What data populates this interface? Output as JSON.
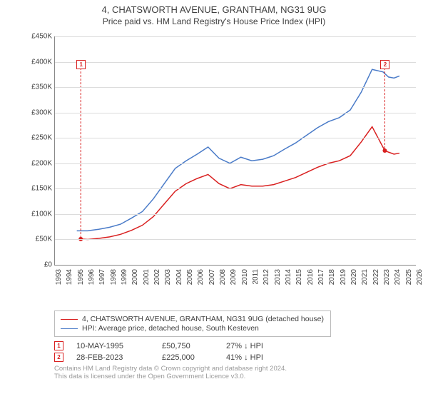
{
  "title": "4, CHATSWORTH AVENUE, GRANTHAM, NG31 9UG",
  "subtitle": "Price paid vs. HM Land Registry's House Price Index (HPI)",
  "chart": {
    "type": "line",
    "background_color": "#ffffff",
    "grid_color": "#dcdcdc",
    "axis_color": "#888888",
    "title_fontsize": 13,
    "label_fontsize": 10,
    "xlim": [
      1993,
      2026
    ],
    "ylim": [
      0,
      450000
    ],
    "ytick_step": 50000,
    "yticks": [
      "£0",
      "£50K",
      "£100K",
      "£150K",
      "£200K",
      "£250K",
      "£300K",
      "£350K",
      "£400K",
      "£450K"
    ],
    "xticks": [
      1993,
      1994,
      1995,
      1996,
      1997,
      1998,
      1999,
      2000,
      2001,
      2002,
      2003,
      2004,
      2005,
      2006,
      2007,
      2008,
      2009,
      2010,
      2011,
      2012,
      2013,
      2014,
      2015,
      2016,
      2017,
      2018,
      2019,
      2020,
      2021,
      2022,
      2023,
      2024,
      2025,
      2026
    ],
    "series": [
      {
        "name": "property",
        "label": "4, CHATSWORTH AVENUE, GRANTHAM, NG31 9UG (detached house)",
        "color": "#d92020",
        "line_width": 1.5,
        "data": [
          [
            1995.36,
            50750
          ],
          [
            1996,
            50000
          ],
          [
            1997,
            52000
          ],
          [
            1998,
            55000
          ],
          [
            1999,
            60000
          ],
          [
            2000,
            68000
          ],
          [
            2001,
            78000
          ],
          [
            2002,
            95000
          ],
          [
            2003,
            120000
          ],
          [
            2004,
            145000
          ],
          [
            2005,
            160000
          ],
          [
            2006,
            170000
          ],
          [
            2007,
            178000
          ],
          [
            2008,
            160000
          ],
          [
            2009,
            150000
          ],
          [
            2010,
            158000
          ],
          [
            2011,
            155000
          ],
          [
            2012,
            155000
          ],
          [
            2013,
            158000
          ],
          [
            2014,
            165000
          ],
          [
            2015,
            172000
          ],
          [
            2016,
            182000
          ],
          [
            2017,
            192000
          ],
          [
            2018,
            200000
          ],
          [
            2019,
            205000
          ],
          [
            2020,
            215000
          ],
          [
            2021,
            242000
          ],
          [
            2022,
            272000
          ],
          [
            2023.16,
            225000
          ],
          [
            2023.5,
            222000
          ],
          [
            2024,
            218000
          ],
          [
            2024.5,
            220000
          ]
        ]
      },
      {
        "name": "hpi",
        "label": "HPI: Average price, detached house, South Kesteven",
        "color": "#4a7bc8",
        "line_width": 1.5,
        "data": [
          [
            1995,
            67000
          ],
          [
            1996,
            67000
          ],
          [
            1997,
            70000
          ],
          [
            1998,
            74000
          ],
          [
            1999,
            80000
          ],
          [
            2000,
            92000
          ],
          [
            2001,
            105000
          ],
          [
            2002,
            130000
          ],
          [
            2003,
            160000
          ],
          [
            2004,
            190000
          ],
          [
            2005,
            205000
          ],
          [
            2006,
            218000
          ],
          [
            2007,
            232000
          ],
          [
            2008,
            210000
          ],
          [
            2009,
            200000
          ],
          [
            2010,
            212000
          ],
          [
            2011,
            205000
          ],
          [
            2012,
            208000
          ],
          [
            2013,
            215000
          ],
          [
            2014,
            228000
          ],
          [
            2015,
            240000
          ],
          [
            2016,
            255000
          ],
          [
            2017,
            270000
          ],
          [
            2018,
            282000
          ],
          [
            2019,
            290000
          ],
          [
            2020,
            305000
          ],
          [
            2021,
            340000
          ],
          [
            2022,
            385000
          ],
          [
            2023,
            380000
          ],
          [
            2023.5,
            370000
          ],
          [
            2024,
            368000
          ],
          [
            2024.5,
            372000
          ]
        ]
      }
    ],
    "markers": [
      {
        "n": "1",
        "x": 1995.36,
        "y": 50750,
        "color": "#d92020"
      },
      {
        "n": "2",
        "x": 2023.16,
        "y": 225000,
        "color": "#d92020"
      }
    ],
    "marker_box_y_offset": 395000
  },
  "legend": {
    "items": [
      {
        "color": "#d92020",
        "label": "4, CHATSWORTH AVENUE, GRANTHAM, NG31 9UG (detached house)"
      },
      {
        "color": "#4a7bc8",
        "label": "HPI: Average price, detached house, South Kesteven"
      }
    ]
  },
  "transactions": [
    {
      "n": "1",
      "color": "#d92020",
      "date": "10-MAY-1995",
      "price": "£50,750",
      "delta": "27% ↓ HPI"
    },
    {
      "n": "2",
      "color": "#d92020",
      "date": "28-FEB-2023",
      "price": "£225,000",
      "delta": "41% ↓ HPI"
    }
  ],
  "footer_line1": "Contains HM Land Registry data © Crown copyright and database right 2024.",
  "footer_line2": "This data is licensed under the Open Government Licence v3.0."
}
